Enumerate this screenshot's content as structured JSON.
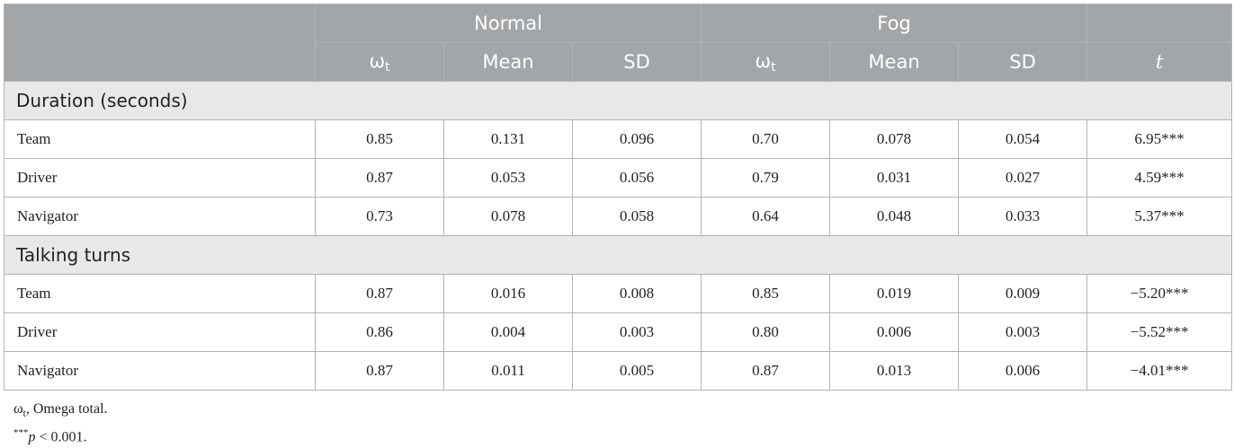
{
  "header": {
    "groups": [
      "Normal",
      "Fog"
    ],
    "omega_symbol": "ω",
    "omega_subscript": "t",
    "mean_label": "Mean",
    "sd_label": "SD",
    "t_label": "t"
  },
  "sections": [
    {
      "title": "Duration (seconds)",
      "rows": [
        {
          "label": "Team",
          "cells": [
            "0.85",
            "0.131",
            "0.096",
            "0.70",
            "0.078",
            "0.054",
            "6.95***"
          ]
        },
        {
          "label": "Driver",
          "cells": [
            "0.87",
            "0.053",
            "0.056",
            "0.79",
            "0.031",
            "0.027",
            "4.59***"
          ]
        },
        {
          "label": "Navigator",
          "cells": [
            "0.73",
            "0.078",
            "0.058",
            "0.64",
            "0.048",
            "0.033",
            "5.37***"
          ]
        }
      ]
    },
    {
      "title": "Talking turns",
      "rows": [
        {
          "label": "Team",
          "cells": [
            "0.87",
            "0.016",
            "0.008",
            "0.85",
            "0.019",
            "0.009",
            "−5.20***"
          ]
        },
        {
          "label": "Driver",
          "cells": [
            "0.86",
            "0.004",
            "0.003",
            "0.80",
            "0.006",
            "0.003",
            "−5.52***"
          ]
        },
        {
          "label": "Navigator",
          "cells": [
            "0.87",
            "0.011",
            "0.005",
            "0.87",
            "0.013",
            "0.006",
            "−4.01***"
          ]
        }
      ]
    }
  ],
  "footnotes": {
    "omega_symbol": "ω",
    "omega_subscript": "t",
    "omega_text": ", Omega total.",
    "sig_marker": "***",
    "sig_p": "p",
    "sig_text": " < 0.001."
  }
}
